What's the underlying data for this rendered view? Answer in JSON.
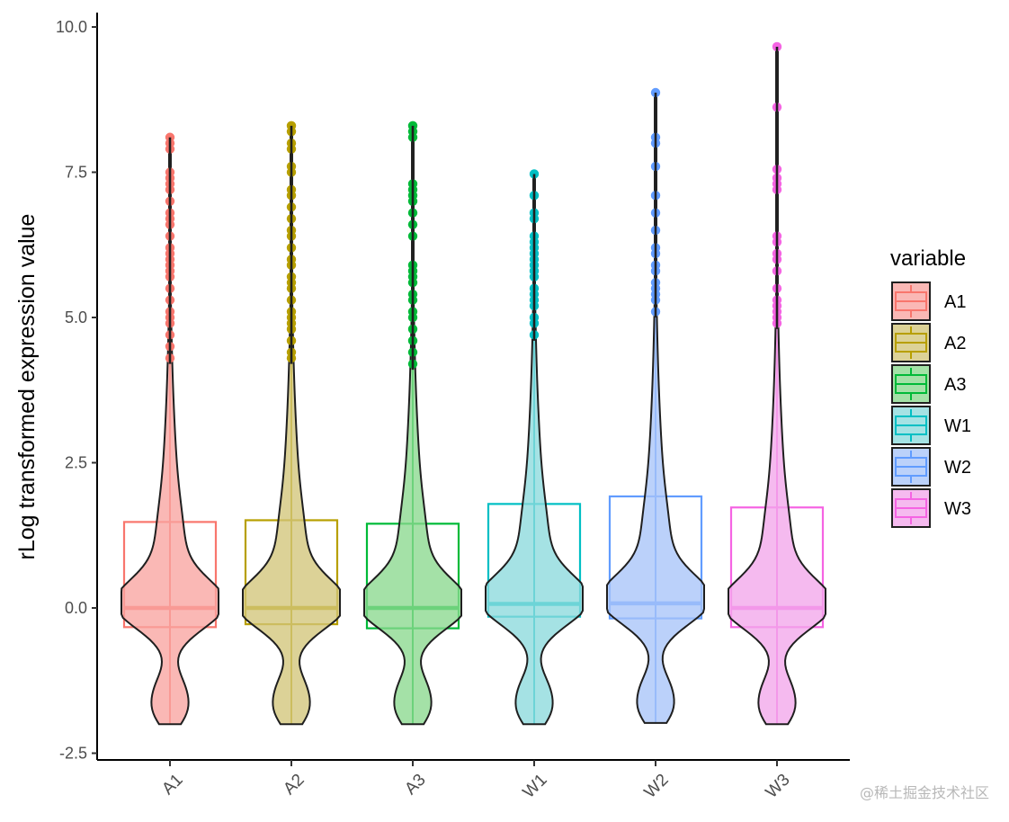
{
  "watermark": "@稀土掘金技术社区",
  "chart_data": {
    "type": "violin+boxplot+points",
    "title": "",
    "xlabel": "",
    "ylabel": "rLog transformed expression value",
    "ylim": [
      -2.5,
      10.0
    ],
    "yticks": [
      -2.5,
      0.0,
      2.5,
      5.0,
      7.5,
      10.0
    ],
    "ytick_labels": [
      "-2.5",
      "0.0",
      "2.5",
      "5.0",
      "7.5",
      "10.0"
    ],
    "categories": [
      "A1",
      "A2",
      "A3",
      "W1",
      "W2",
      "W3"
    ],
    "legend": {
      "title": "variable",
      "placement": "right",
      "entries": [
        "A1",
        "A2",
        "A3",
        "W1",
        "W2",
        "W3"
      ]
    },
    "series": [
      {
        "name": "A1",
        "color": "#F8766D",
        "fill": "#F8A4A0",
        "min": -2.0,
        "q1": -0.33,
        "median": 0.0,
        "q3": 1.48,
        "whisker_high": 4.2,
        "max": 8.1,
        "outliers": [
          4.3,
          4.5,
          4.7,
          4.9,
          5.0,
          5.1,
          5.3,
          5.5,
          5.7,
          5.8,
          5.9,
          6.0,
          6.1,
          6.2,
          6.4,
          6.6,
          6.7,
          6.8,
          7.0,
          7.2,
          7.3,
          7.4,
          7.5,
          7.9,
          8.0,
          8.1
        ]
      },
      {
        "name": "A2",
        "color": "#B79F00",
        "fill": "#D2C57A",
        "min": -2.0,
        "q1": -0.28,
        "median": 0.0,
        "q3": 1.51,
        "whisker_high": 4.2,
        "max": 8.3,
        "outliers": [
          4.3,
          4.4,
          4.6,
          4.8,
          4.9,
          5.0,
          5.1,
          5.3,
          5.5,
          5.6,
          5.7,
          5.9,
          6.0,
          6.2,
          6.4,
          6.5,
          6.7,
          6.9,
          7.1,
          7.2,
          7.5,
          7.6,
          7.9,
          8.0,
          8.2,
          8.3
        ]
      },
      {
        "name": "A3",
        "color": "#00BA38",
        "fill": "#8BD98E",
        "min": -2.0,
        "q1": -0.35,
        "median": 0.0,
        "q3": 1.45,
        "whisker_high": 4.1,
        "max": 8.3,
        "outliers": [
          4.2,
          4.4,
          4.6,
          4.8,
          5.0,
          5.1,
          5.3,
          5.4,
          5.6,
          5.7,
          5.8,
          5.9,
          6.4,
          6.6,
          6.8,
          7.0,
          7.1,
          7.2,
          7.3,
          8.1,
          8.2,
          8.3
        ]
      },
      {
        "name": "W1",
        "color": "#00BFC4",
        "fill": "#8CDADC",
        "min": -2.0,
        "q1": -0.15,
        "median": 0.07,
        "q3": 1.79,
        "whisker_high": 4.6,
        "max": 7.47,
        "outliers": [
          4.7,
          4.9,
          5.0,
          5.2,
          5.3,
          5.4,
          5.5,
          5.7,
          5.8,
          5.9,
          6.0,
          6.1,
          6.2,
          6.3,
          6.4,
          6.7,
          6.8,
          7.1,
          7.47
        ]
      },
      {
        "name": "W2",
        "color": "#619CFF",
        "fill": "#A8C4F8",
        "min": -1.98,
        "q1": -0.18,
        "median": 0.08,
        "q3": 1.92,
        "whisker_high": 5.0,
        "max": 8.87,
        "outliers": [
          5.1,
          5.3,
          5.4,
          5.5,
          5.6,
          5.8,
          5.9,
          6.1,
          6.2,
          6.5,
          6.8,
          7.1,
          7.6,
          8.0,
          8.1,
          8.87
        ]
      },
      {
        "name": "W3",
        "color": "#F564E3",
        "fill": "#F2A6EA",
        "min": -2.0,
        "q1": -0.33,
        "median": 0.0,
        "q3": 1.73,
        "whisker_high": 4.8,
        "max": 9.66,
        "outliers": [
          4.9,
          5.0,
          5.1,
          5.2,
          5.3,
          5.5,
          5.8,
          6.0,
          6.1,
          6.3,
          6.4,
          7.2,
          7.3,
          7.4,
          7.55,
          8.62,
          9.66
        ]
      }
    ]
  }
}
